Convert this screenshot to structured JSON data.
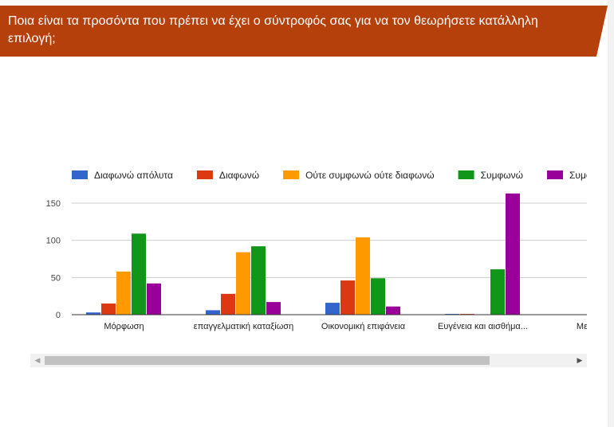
{
  "question": {
    "title": "Ποια είναι τα προσόντα που πρέπει να έχει ο σύντροφός σας για να τον θεωρήσετε κατάλληλη επιλογή;"
  },
  "colors": {
    "banner": "#b5400b",
    "series": [
      "#3366cc",
      "#dc3912",
      "#ff9900",
      "#109618",
      "#990099"
    ]
  },
  "scrollbar": {
    "left_arrow": "◀",
    "right_arrow": "▶"
  },
  "chart_data": {
    "type": "bar",
    "categories": [
      "Μόρφωση",
      "επαγγελματική καταξίωση",
      "Οικονομική επιφάνεια",
      "Ευγένεια και αισθήμα...",
      "Με μόνο κρ..."
    ],
    "series": [
      {
        "name": "Διαφωνώ απόλυτα",
        "values": [
          3,
          6,
          16,
          1,
          0
        ]
      },
      {
        "name": "Διαφωνώ",
        "values": [
          15,
          28,
          46,
          1,
          0
        ]
      },
      {
        "name": "Ούτε συμφωνώ ούτε διαφωνώ",
        "values": [
          58,
          84,
          104,
          0,
          0
        ]
      },
      {
        "name": "Συμφωνώ",
        "values": [
          109,
          92,
          49,
          61,
          0
        ]
      },
      {
        "name": "Συμφωνώ σ...",
        "values": [
          42,
          17,
          11,
          163,
          0
        ]
      }
    ],
    "yticks": [
      0,
      50,
      100,
      150
    ],
    "ylim": [
      0,
      165
    ],
    "legend_position": "top",
    "grid": true
  }
}
